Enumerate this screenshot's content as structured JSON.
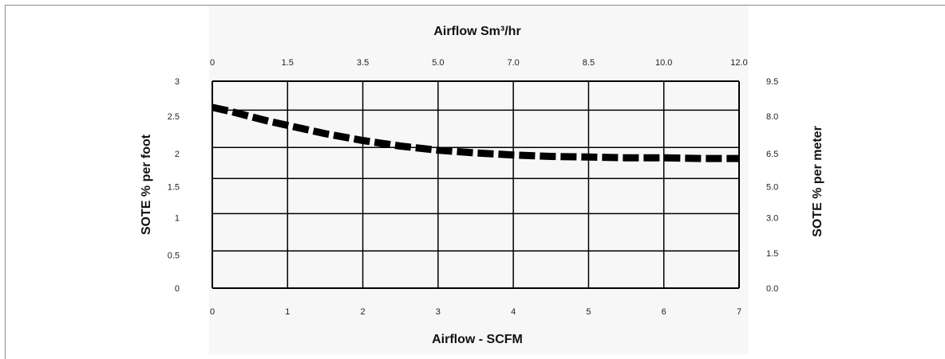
{
  "chart_data": {
    "type": "line",
    "title": "",
    "top_axis_label": "Airflow Sm³/hr",
    "top_ticks": [
      "0",
      "1.5",
      "3.5",
      "5.0",
      "7.0",
      "8.5",
      "10.0",
      "12.0"
    ],
    "xlabel": "Airflow - SCFM",
    "x_ticks": [
      "0",
      "1",
      "2",
      "3",
      "4",
      "5",
      "6",
      "7"
    ],
    "xlim": [
      0,
      7
    ],
    "ylabel": "SOTE % per foot",
    "y_ticks": [
      "0",
      "0.5",
      "1",
      "1.5",
      "2",
      "2.5",
      "3"
    ],
    "ylim": [
      0,
      3
    ],
    "right_axis_label": "SOTE % per meter",
    "right_ticks": [
      "0.0",
      "1.5",
      "3.0",
      "5.0",
      "6.5",
      "8.0",
      "9.5"
    ],
    "grid": true,
    "series": [
      {
        "x": [
          0,
          0.25,
          0.5,
          0.75,
          1,
          1.5,
          2,
          2.5,
          3,
          3.5,
          4,
          4.5,
          5,
          5.5,
          6,
          6.5,
          7
        ],
        "values": [
          2.62,
          2.56,
          2.49,
          2.42,
          2.36,
          2.24,
          2.14,
          2.06,
          2.0,
          1.96,
          1.93,
          1.91,
          1.9,
          1.89,
          1.89,
          1.88,
          1.88
        ],
        "style": "dashed",
        "color": "#000000"
      }
    ]
  }
}
